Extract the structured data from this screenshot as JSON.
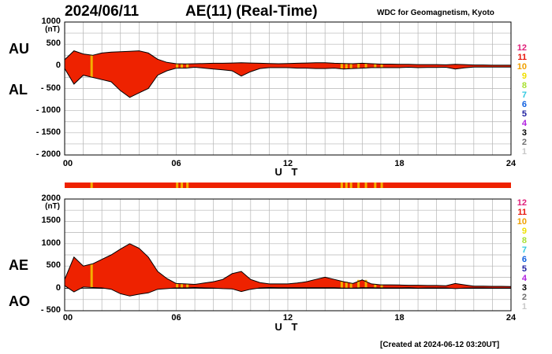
{
  "header": {
    "date": "2024/06/11",
    "title": "AE(11) (Real-Time)",
    "source": "WDC for Geomagnetism, Kyoto"
  },
  "footer": {
    "created": "[Created at 2024-06-12 03:20UT]"
  },
  "chart_data": [
    {
      "type": "area",
      "panel": "top",
      "series_labels": {
        "upper": "AU",
        "lower": "AL"
      },
      "unit": "(nT)",
      "xlabel": "U T",
      "xlim": [
        0,
        24
      ],
      "ylim": [
        -2000,
        1000
      ],
      "x_ticks": [
        0,
        6,
        12,
        18,
        24
      ],
      "x_tick_labels": [
        "00",
        "06",
        "12",
        "18",
        "24"
      ],
      "y_ticks": [
        1000,
        500,
        0,
        -500,
        -1000,
        -1500,
        -2000
      ],
      "y_tick_labels": [
        "1000",
        "500",
        "0",
        "- 500",
        "- 1000",
        "- 1500",
        "- 2000"
      ],
      "hours": [
        0,
        0.5,
        1,
        1.5,
        2,
        2.5,
        3,
        3.5,
        4,
        4.5,
        5,
        5.5,
        6,
        6.5,
        7,
        7.5,
        8,
        8.5,
        9,
        9.5,
        10,
        10.5,
        11,
        11.5,
        12,
        12.5,
        13,
        13.5,
        14,
        14.5,
        15,
        15.5,
        16,
        16.5,
        17,
        17.5,
        18,
        18.5,
        19,
        19.5,
        20,
        20.5,
        21,
        21.5,
        22,
        22.5,
        23,
        23.5,
        24
      ],
      "AU": [
        150,
        350,
        280,
        250,
        300,
        320,
        330,
        340,
        350,
        300,
        160,
        90,
        60,
        55,
        60,
        65,
        70,
        70,
        75,
        80,
        75,
        70,
        65,
        60,
        65,
        70,
        75,
        80,
        80,
        70,
        65,
        60,
        70,
        60,
        50,
        50,
        45,
        45,
        40,
        40,
        40,
        35,
        45,
        40,
        30,
        30,
        25,
        25,
        25
      ],
      "AL": [
        -50,
        -400,
        -200,
        -250,
        -300,
        -350,
        -550,
        -700,
        -600,
        -500,
        -200,
        -100,
        -40,
        -40,
        -20,
        -40,
        -60,
        -80,
        -100,
        -220,
        -120,
        -50,
        -30,
        -30,
        -30,
        -40,
        -40,
        -50,
        -50,
        -40,
        -60,
        -50,
        -40,
        -30,
        -30,
        -30,
        -30,
        -20,
        -30,
        -25,
        -25,
        -20,
        -60,
        -35,
        -15,
        -15,
        -15,
        -15,
        -15
      ]
    },
    {
      "type": "area",
      "panel": "bottom",
      "series_labels": {
        "upper": "AE",
        "lower": "AO"
      },
      "unit": "(nT)",
      "xlabel": "U T",
      "xlim": [
        0,
        24
      ],
      "ylim": [
        -500,
        2000
      ],
      "x_ticks": [
        0,
        6,
        12,
        18,
        24
      ],
      "x_tick_labels": [
        "00",
        "06",
        "12",
        "18",
        "24"
      ],
      "y_ticks": [
        2000,
        1500,
        1000,
        500,
        0,
        -500
      ],
      "y_tick_labels": [
        "2000",
        "1500",
        "1000",
        "500",
        "0",
        "- 500"
      ],
      "hours": [
        0,
        0.5,
        1,
        1.5,
        2,
        2.5,
        3,
        3.5,
        4,
        4.5,
        5,
        5.5,
        6,
        6.5,
        7,
        7.5,
        8,
        8.5,
        9,
        9.5,
        10,
        10.5,
        11,
        11.5,
        12,
        12.5,
        13,
        13.5,
        14,
        14.5,
        15,
        15.5,
        16,
        16.5,
        17,
        17.5,
        18,
        18.5,
        19,
        19.5,
        20,
        20.5,
        21,
        21.5,
        22,
        22.5,
        23,
        23.5,
        24
      ],
      "AE": [
        200,
        700,
        500,
        550,
        650,
        750,
        880,
        1000,
        900,
        700,
        380,
        220,
        110,
        100,
        90,
        120,
        150,
        200,
        330,
        380,
        200,
        130,
        100,
        100,
        100,
        120,
        150,
        200,
        250,
        200,
        150,
        110,
        190,
        100,
        80,
        80,
        75,
        70,
        70,
        65,
        65,
        60,
        110,
        80,
        50,
        50,
        45,
        45,
        40
      ],
      "AO": [
        60,
        -80,
        30,
        20,
        10,
        -20,
        -120,
        -170,
        -130,
        -100,
        -20,
        -5,
        10,
        10,
        20,
        10,
        5,
        -5,
        -10,
        -70,
        -20,
        10,
        20,
        15,
        15,
        15,
        15,
        15,
        15,
        15,
        5,
        5,
        15,
        15,
        10,
        10,
        10,
        15,
        5,
        10,
        10,
        10,
        -5,
        5,
        10,
        10,
        5,
        5,
        5
      ]
    },
    {
      "type": "table",
      "role": "activity-indicator-strip",
      "hours_range": [
        0,
        24
      ],
      "background_color": "#ee2200",
      "marks": [
        {
          "hour": 1.45,
          "color": "#f4b000"
        },
        {
          "hour": 6.05,
          "color": "#f4b000"
        },
        {
          "hour": 6.3,
          "color": "#f4b000"
        },
        {
          "hour": 6.6,
          "color": "#f4b000"
        },
        {
          "hour": 14.9,
          "color": "#f4b000"
        },
        {
          "hour": 15.15,
          "color": "#f4b000"
        },
        {
          "hour": 15.4,
          "color": "#f4b000"
        },
        {
          "hour": 15.8,
          "color": "#f4b000"
        },
        {
          "hour": 16.2,
          "color": "#f4b000"
        },
        {
          "hour": 16.7,
          "color": "#f4b000"
        },
        {
          "hour": 17.05,
          "color": "#f4b000"
        }
      ]
    }
  ],
  "color_legend": [
    {
      "label": "12",
      "color": "#e0207a"
    },
    {
      "label": "11",
      "color": "#e8160c"
    },
    {
      "label": "10",
      "color": "#f0a000"
    },
    {
      "label": "9",
      "color": "#f0e000"
    },
    {
      "label": "8",
      "color": "#a8e030"
    },
    {
      "label": "7",
      "color": "#30c8e0"
    },
    {
      "label": "6",
      "color": "#1060e0"
    },
    {
      "label": "5",
      "color": "#2020a0"
    },
    {
      "label": "4",
      "color": "#b020e0"
    },
    {
      "label": "3",
      "color": "#000000"
    },
    {
      "label": "2",
      "color": "#707070"
    },
    {
      "label": "1",
      "color": "#c8c8c8"
    }
  ],
  "colors": {
    "fill": "#ee2200",
    "highlight": "#f4b000",
    "grid": "#b4b4b4"
  }
}
